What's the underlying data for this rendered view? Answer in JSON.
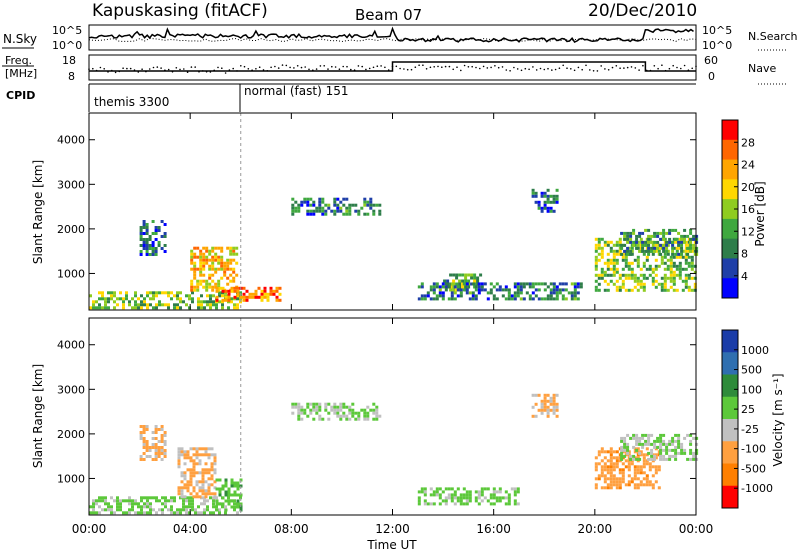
{
  "header": {
    "station": "Kapuskasing (fitACF)",
    "beam": "Beam 07",
    "date": "20/Dec/2010"
  },
  "strips": {
    "nsky_label": "N.Sky",
    "nsky_ticks": [
      "10^5",
      "10^0"
    ],
    "nsearch_label": "N.Search",
    "nsearch_ticks": [
      "10^5",
      "10^0"
    ],
    "freq_label_1": "Freq.",
    "freq_label_2": "[MHz]",
    "freq_ticks": [
      "18",
      "8"
    ],
    "nave_label": "Nave",
    "nave_ticks": [
      "60",
      "0"
    ],
    "cpid_label": "CPID",
    "cpid_segments": [
      {
        "label": "themis 3300",
        "start_hour": 0,
        "end_hour": 6
      },
      {
        "label": "normal (fast) 151",
        "start_hour": 6,
        "end_hour": 24
      }
    ]
  },
  "xaxis": {
    "label": "Time UT",
    "ticks": [
      "00:00",
      "04:00",
      "08:00",
      "12:00",
      "16:00",
      "20:00",
      "00:00"
    ],
    "tick_hours": [
      0,
      4,
      8,
      12,
      16,
      20,
      24
    ],
    "range": [
      0,
      24
    ]
  },
  "yaxis": {
    "label": "Slant Range [km]",
    "ticks": [
      "1000",
      "2000",
      "3000",
      "4000"
    ],
    "tick_values": [
      1000,
      2000,
      3000,
      4000
    ],
    "range": [
      180,
      4600
    ]
  },
  "power_scale": {
    "label": "Power [dB]",
    "ticks": [
      "28",
      "24",
      "20",
      "16",
      "12",
      "8",
      "4"
    ],
    "colors": [
      "#0000ff",
      "#1f3fa8",
      "#2e7d4a",
      "#3fa83f",
      "#8fcc20",
      "#ffd700",
      "#ffa500",
      "#ff6600",
      "#ff0000"
    ]
  },
  "velocity_scale": {
    "label": "Velocity [m s⁻¹]",
    "ticks": [
      "1000",
      "500",
      "100",
      "25",
      "-25",
      "-100",
      "-500",
      "-1000"
    ],
    "colors": [
      "#1a3ca8",
      "#2f6fb0",
      "#2e8b3a",
      "#5cc83a",
      "#c0c0c0",
      "#ffa040",
      "#ff7f00",
      "#ff0000"
    ]
  },
  "chart_data": [
    {
      "type": "heatmap",
      "title": "Power",
      "xlabel": "Time UT",
      "ylabel": "Slant Range [km]",
      "xlim": [
        0,
        24
      ],
      "ylim": [
        180,
        4600
      ],
      "colorbar": {
        "label": "Power [dB]",
        "range": [
          0,
          30
        ]
      },
      "echo_regions": [
        {
          "t_start": 0.0,
          "t_end": 6.0,
          "r_start": 200,
          "r_end": 600,
          "value": 14
        },
        {
          "t_start": 2.0,
          "t_end": 3.0,
          "r_start": 1400,
          "r_end": 2200,
          "value": 6
        },
        {
          "t_start": 4.0,
          "t_end": 5.8,
          "r_start": 600,
          "r_end": 1600,
          "value": 20
        },
        {
          "t_start": 5.0,
          "t_end": 7.5,
          "r_start": 400,
          "r_end": 700,
          "value": 24
        },
        {
          "t_start": 8.0,
          "t_end": 11.5,
          "r_start": 2300,
          "r_end": 2700,
          "value": 8
        },
        {
          "t_start": 14.0,
          "t_end": 15.5,
          "r_start": 650,
          "r_end": 1000,
          "value": 12
        },
        {
          "t_start": 13.0,
          "t_end": 19.5,
          "r_start": 400,
          "r_end": 800,
          "value": 8
        },
        {
          "t_start": 17.5,
          "t_end": 18.5,
          "r_start": 2400,
          "r_end": 2900,
          "value": 6
        },
        {
          "t_start": 20.0,
          "t_end": 24.0,
          "r_start": 600,
          "r_end": 1800,
          "value": 14
        },
        {
          "t_start": 21.0,
          "t_end": 24.0,
          "r_start": 1400,
          "r_end": 2000,
          "value": 10
        }
      ]
    },
    {
      "type": "heatmap",
      "title": "Velocity",
      "xlabel": "Time UT",
      "ylabel": "Slant Range [km]",
      "xlim": [
        0,
        24
      ],
      "ylim": [
        180,
        4600
      ],
      "colorbar": {
        "label": "Velocity [m s⁻¹]",
        "range": [
          -1000,
          1000
        ]
      },
      "echo_regions": [
        {
          "t_start": 0.0,
          "t_end": 6.0,
          "r_start": 200,
          "r_end": 600,
          "value": 50
        },
        {
          "t_start": 2.0,
          "t_end": 3.0,
          "r_start": 1400,
          "r_end": 2200,
          "value": -300
        },
        {
          "t_start": 3.5,
          "t_end": 5.0,
          "r_start": 600,
          "r_end": 1700,
          "value": -300
        },
        {
          "t_start": 5.0,
          "t_end": 6.0,
          "r_start": 300,
          "r_end": 1000,
          "value": 150
        },
        {
          "t_start": 8.0,
          "t_end": 11.5,
          "r_start": 2300,
          "r_end": 2700,
          "value": 0
        },
        {
          "t_start": 13.0,
          "t_end": 17.0,
          "r_start": 400,
          "r_end": 800,
          "value": 80
        },
        {
          "t_start": 17.5,
          "t_end": 18.5,
          "r_start": 2400,
          "r_end": 2900,
          "value": -300
        },
        {
          "t_start": 20.0,
          "t_end": 22.5,
          "r_start": 800,
          "r_end": 1700,
          "value": -400
        },
        {
          "t_start": 21.0,
          "t_end": 24.0,
          "r_start": 1400,
          "r_end": 2000,
          "value": 0
        }
      ]
    }
  ]
}
